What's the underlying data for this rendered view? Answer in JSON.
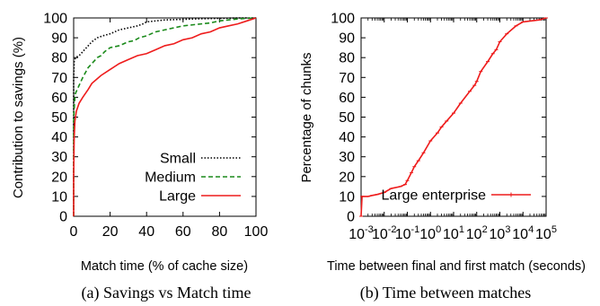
{
  "chart_data": [
    {
      "type": "line",
      "xlabel": "Match time (% of cache size)",
      "ylabel": "Contribution to savings (%)",
      "caption": "(a) Savings vs Match time",
      "xlim": [
        0,
        100
      ],
      "ylim": [
        0,
        100
      ],
      "x_ticks": [
        "0",
        "20",
        "40",
        "60",
        "80",
        "100"
      ],
      "y_ticks": [
        "0",
        "10",
        "20",
        "30",
        "40",
        "50",
        "60",
        "70",
        "80",
        "90",
        "100"
      ],
      "legend_position": "bottom-right",
      "grid": false,
      "series": [
        {
          "name": "Small",
          "color": "#000000",
          "dash": "dotted",
          "points": [
            [
              0,
              0
            ],
            [
              0,
              70
            ],
            [
              0.3,
              78
            ],
            [
              1,
              80
            ],
            [
              3,
              81
            ],
            [
              5,
              83
            ],
            [
              8,
              86
            ],
            [
              10,
              88
            ],
            [
              13,
              90
            ],
            [
              16,
              91
            ],
            [
              20,
              92
            ],
            [
              25,
              94
            ],
            [
              30,
              95
            ],
            [
              35,
              96
            ],
            [
              38,
              97
            ],
            [
              40,
              98
            ],
            [
              45,
              98.5
            ],
            [
              50,
              99
            ],
            [
              60,
              99.3
            ],
            [
              70,
              99.6
            ],
            [
              80,
              99.8
            ],
            [
              90,
              100
            ],
            [
              100,
              100
            ]
          ]
        },
        {
          "name": "Medium",
          "color": "#1a8a1a",
          "dash": "dashed",
          "points": [
            [
              0,
              0
            ],
            [
              0,
              48
            ],
            [
              0.5,
              58
            ],
            [
              1,
              62
            ],
            [
              3,
              66
            ],
            [
              5,
              70
            ],
            [
              8,
              75
            ],
            [
              10,
              77
            ],
            [
              13,
              80
            ],
            [
              15,
              81
            ],
            [
              17,
              83
            ],
            [
              20,
              85
            ],
            [
              25,
              86
            ],
            [
              30,
              88
            ],
            [
              33,
              88.5
            ],
            [
              36,
              90
            ],
            [
              40,
              91
            ],
            [
              45,
              93
            ],
            [
              50,
              94
            ],
            [
              55,
              95
            ],
            [
              60,
              96
            ],
            [
              65,
              96.5
            ],
            [
              70,
              97
            ],
            [
              75,
              97.5
            ],
            [
              80,
              98.5
            ],
            [
              85,
              99
            ],
            [
              90,
              99.5
            ],
            [
              95,
              99.8
            ],
            [
              100,
              100
            ]
          ]
        },
        {
          "name": "Large",
          "color": "#ee1c1c",
          "dash": "solid",
          "points": [
            [
              0,
              0
            ],
            [
              0,
              20
            ],
            [
              0.3,
              40
            ],
            [
              0.7,
              48
            ],
            [
              1.5,
              53
            ],
            [
              3,
              57
            ],
            [
              5,
              60
            ],
            [
              8,
              64
            ],
            [
              10,
              67
            ],
            [
              15,
              71
            ],
            [
              20,
              74
            ],
            [
              25,
              77
            ],
            [
              30,
              79
            ],
            [
              35,
              81
            ],
            [
              40,
              82
            ],
            [
              45,
              84
            ],
            [
              50,
              86
            ],
            [
              55,
              87
            ],
            [
              60,
              89
            ],
            [
              65,
              90
            ],
            [
              70,
              92
            ],
            [
              75,
              93
            ],
            [
              80,
              95
            ],
            [
              85,
              96
            ],
            [
              90,
              97
            ],
            [
              95,
              98.5
            ],
            [
              100,
              100
            ]
          ]
        }
      ]
    },
    {
      "type": "line",
      "xlabel": "Time between final and first match (seconds)",
      "ylabel": "Percentage of chunks",
      "caption": "(b) Time between matches",
      "x_scale": "log",
      "xlim": [
        0.001,
        100000
      ],
      "ylim": [
        0,
        100
      ],
      "x_ticks": [
        {
          "base": "10",
          "exp": "-3"
        },
        {
          "base": "10",
          "exp": "-2"
        },
        {
          "base": "10",
          "exp": "-1"
        },
        {
          "base": "10",
          "exp": "0"
        },
        {
          "base": "10",
          "exp": "1"
        },
        {
          "base": "10",
          "exp": "2"
        },
        {
          "base": "10",
          "exp": "3"
        },
        {
          "base": "10",
          "exp": "4"
        },
        {
          "base": "10",
          "exp": "5"
        }
      ],
      "y_ticks": [
        "0",
        "10",
        "20",
        "30",
        "40",
        "50",
        "60",
        "70",
        "80",
        "90",
        "100"
      ],
      "legend_position": "bottom-right",
      "grid": false,
      "series": [
        {
          "name": "Large enterprise",
          "color": "#ee1c1c",
          "dash": "solid",
          "points": [
            [
              0.001,
              0
            ],
            [
              0.0011,
              10
            ],
            [
              0.002,
              10
            ],
            [
              0.003,
              10.5
            ],
            [
              0.005,
              11
            ],
            [
              0.01,
              12
            ],
            [
              0.02,
              14
            ],
            [
              0.05,
              15
            ],
            [
              0.08,
              16
            ],
            [
              0.1,
              18
            ],
            [
              0.15,
              22
            ],
            [
              0.2,
              25
            ],
            [
              0.3,
              28
            ],
            [
              0.5,
              32
            ],
            [
              1,
              38
            ],
            [
              2,
              42
            ],
            [
              3,
              45
            ],
            [
              5,
              48
            ],
            [
              10,
              52
            ],
            [
              20,
              57
            ],
            [
              50,
              63
            ],
            [
              80,
              66
            ],
            [
              100,
              68
            ],
            [
              150,
              73
            ],
            [
              300,
              78
            ],
            [
              500,
              82
            ],
            [
              700,
              84
            ],
            [
              1000,
              88
            ],
            [
              2000,
              92
            ],
            [
              5000,
              96
            ],
            [
              10000,
              98
            ],
            [
              50000,
              99
            ],
            [
              100000,
              100
            ]
          ]
        }
      ]
    }
  ]
}
